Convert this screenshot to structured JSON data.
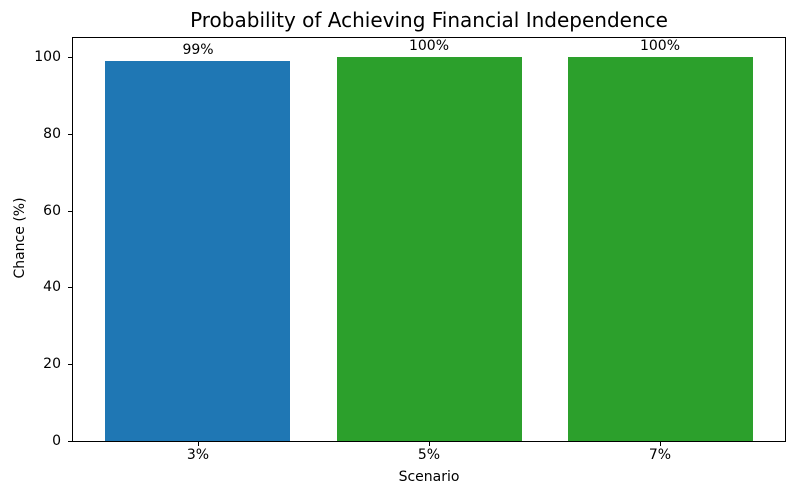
{
  "chart_data": {
    "type": "bar",
    "title": "Probability of Achieving Financial Independence",
    "xlabel": "Scenario",
    "ylabel": "Chance (%)",
    "categories": [
      "3%",
      "5%",
      "7%"
    ],
    "values": [
      99,
      100,
      100
    ],
    "bar_labels": [
      "99%",
      "100%",
      "100%"
    ],
    "bar_colors": [
      "#1f77b4",
      "#2ca02c",
      "#2ca02c"
    ],
    "yticks": [
      0,
      20,
      40,
      60,
      80,
      100
    ],
    "ylim": [
      0,
      105
    ],
    "grid": false,
    "legend": null
  },
  "colors": {
    "bar_blue": "#1f77b4",
    "bar_green": "#2ca02c",
    "text": "#000000",
    "background": "#ffffff"
  }
}
